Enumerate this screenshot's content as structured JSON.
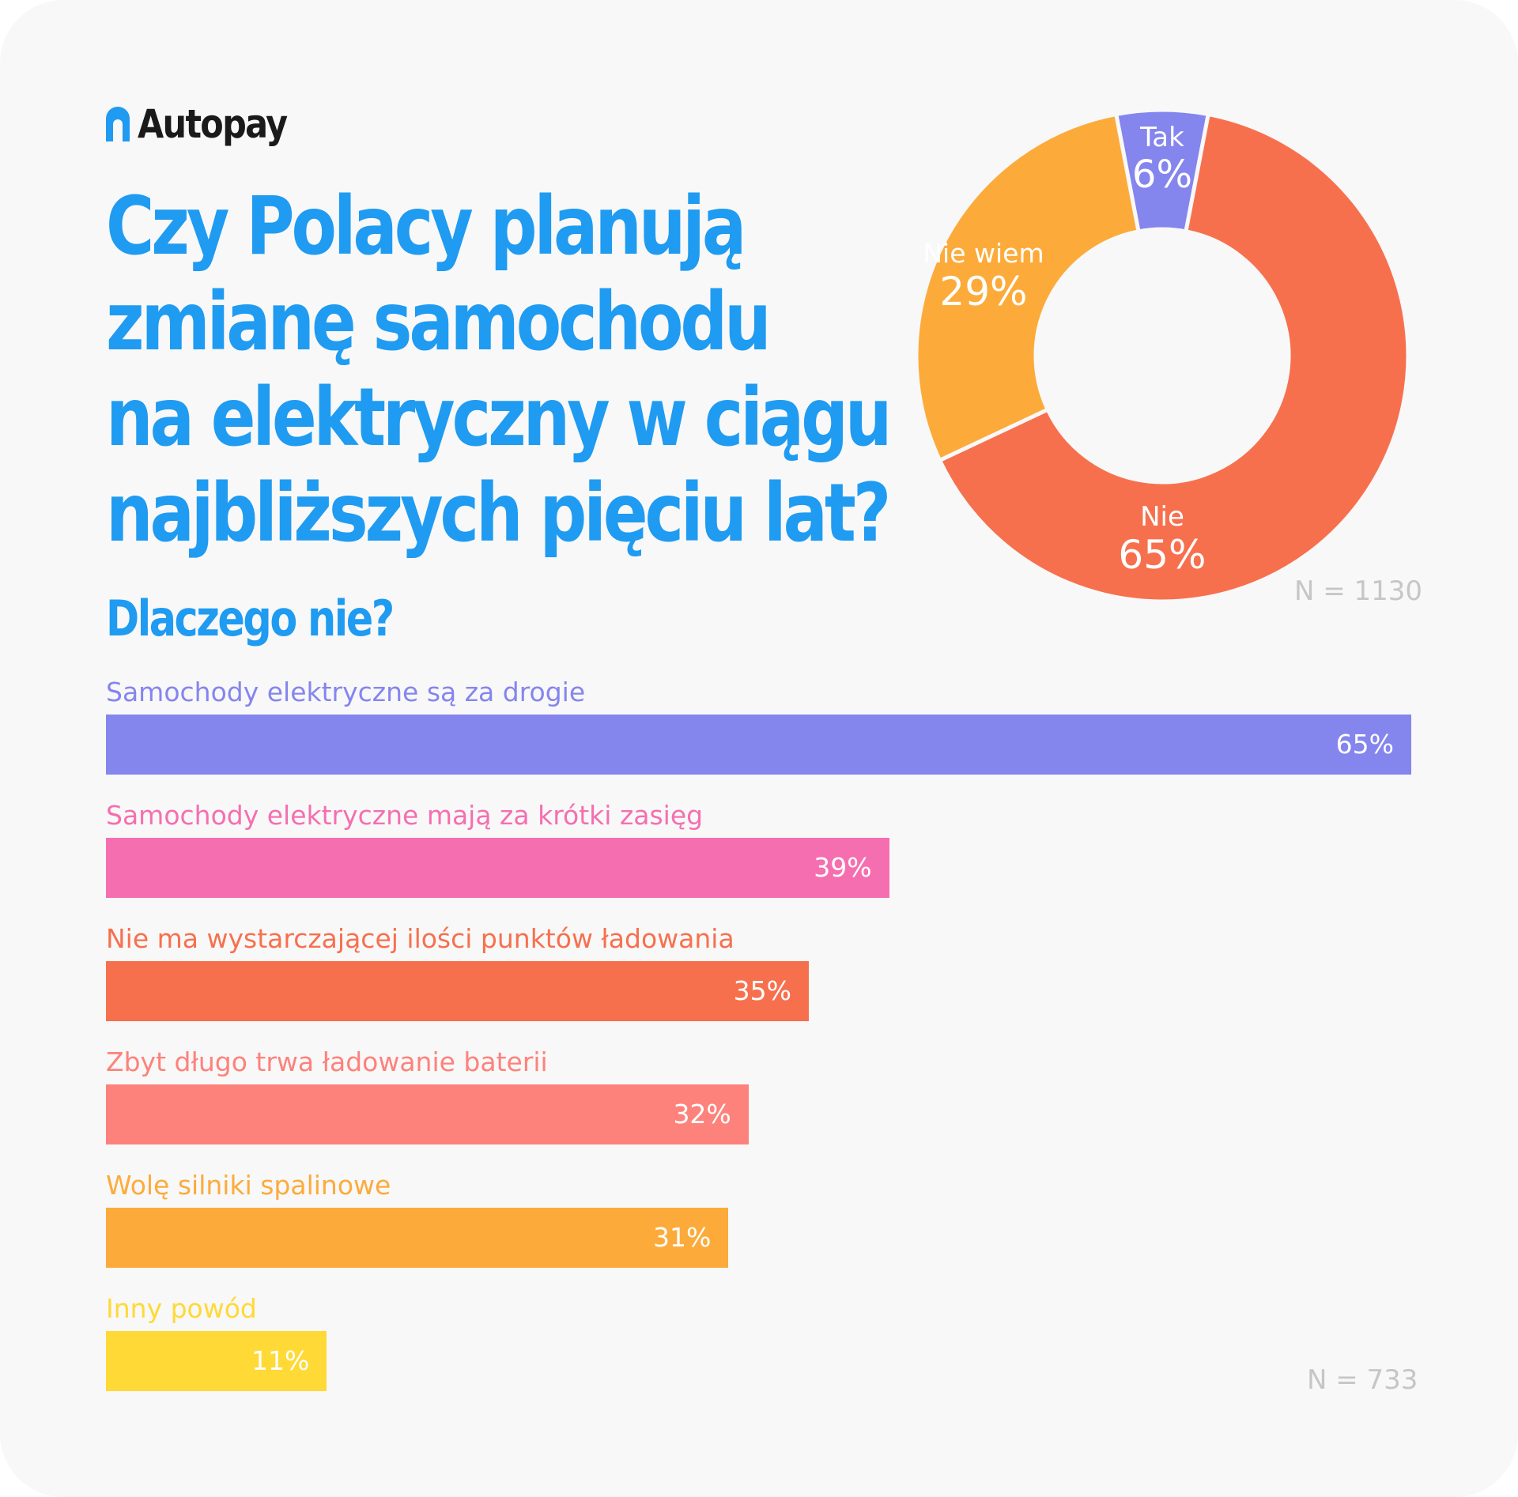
{
  "brand": {
    "name": "Autopay",
    "icon": "autopay-logo-icon"
  },
  "title_lines": [
    "Czy Polacy planują",
    "zmianę samochodu",
    "na elektryczny w ciągu",
    "najbliższych pięciu lat?"
  ],
  "colors": {
    "title": "#1f9bf1",
    "tak": "#8585ee",
    "nie": "#f7704e",
    "nie_wiem": "#fcab3b",
    "bar_1": "#8585ee",
    "bar_2": "#f56fb0",
    "bar_3": "#f7704e",
    "bar_4": "#fd827c",
    "bar_5": "#fcab3b",
    "bar_6": "#ffd936"
  },
  "chart_data": [
    {
      "type": "pie",
      "variant": "donut",
      "slices": [
        {
          "label": "Tak",
          "value": 6,
          "value_label": "6%",
          "color": "#8585ee"
        },
        {
          "label": "Nie",
          "value": 65,
          "value_label": "65%",
          "color": "#f7704e"
        },
        {
          "label": "Nie wiem",
          "value": 29,
          "value_label": "29%",
          "color": "#fcab3b"
        }
      ],
      "sample_note": "N = 1130"
    },
    {
      "type": "bar",
      "orientation": "horizontal",
      "title": "Dlaczego nie?",
      "categories": [
        "Samochody elektryczne są za drogie",
        "Samochody elektryczne mają za krótki zasięg",
        "Nie ma wystarczającej ilości punktów ładowania",
        "Zbyt długo trwa ładowanie baterii",
        "Wolę silniki spalinowe",
        "Inny powód"
      ],
      "values": [
        65,
        39,
        35,
        32,
        31,
        11
      ],
      "value_labels": [
        "65%",
        "39%",
        "35%",
        "32%",
        "31%",
        "11%"
      ],
      "colors": [
        "#8585ee",
        "#f56fb0",
        "#f7704e",
        "#fd827c",
        "#fcab3b",
        "#ffd936"
      ],
      "label_colors": [
        "#8585ee",
        "#f56fb0",
        "#f7704e",
        "#fd827c",
        "#fcab3b",
        "#ffd936"
      ],
      "xlim": [
        0,
        65
      ],
      "sample_note": "N = 733"
    }
  ]
}
